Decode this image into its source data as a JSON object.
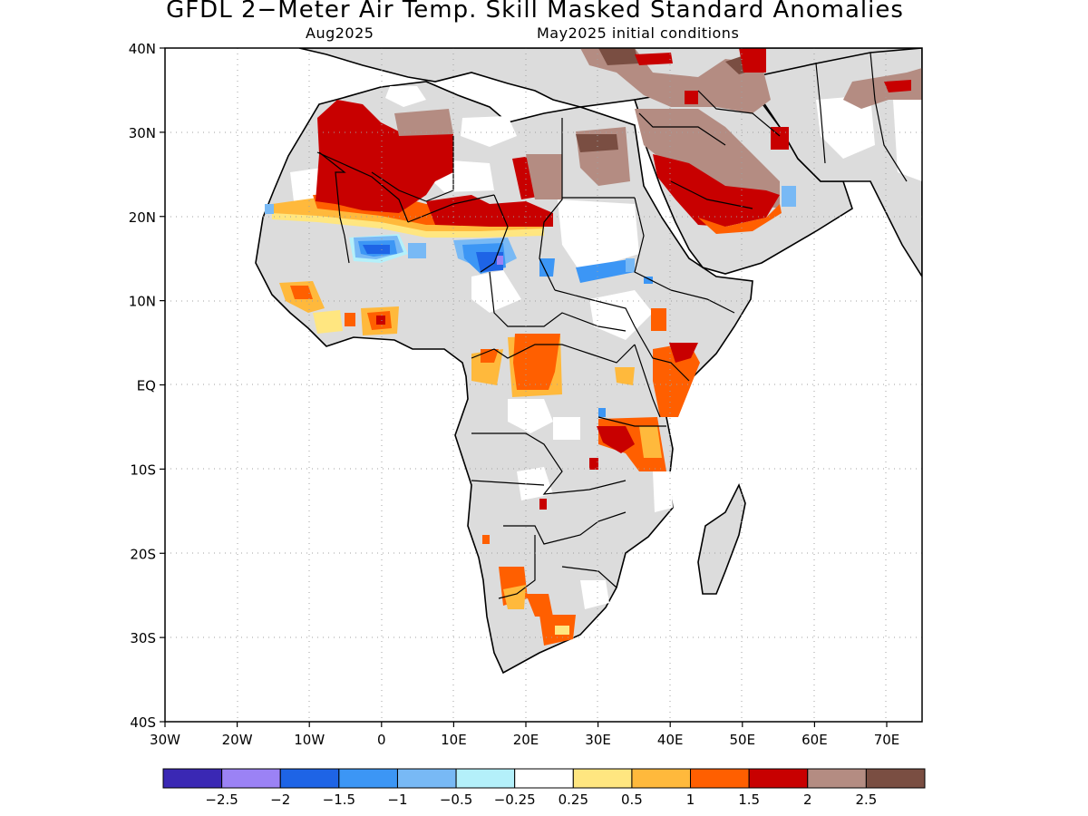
{
  "title": "GFDL 2−Meter Air Temp. Skill Masked Standard Anomalies",
  "subtitle_left": "Aug2025",
  "subtitle_right": "May2025 initial conditions",
  "lat_labels": [
    "40N",
    "30N",
    "20N",
    "10N",
    "EQ",
    "10S",
    "20S",
    "30S",
    "40S"
  ],
  "lon_labels": [
    "30W",
    "20W",
    "10W",
    "0",
    "10E",
    "20E",
    "30E",
    "40E",
    "50E",
    "60E",
    "70E"
  ],
  "colorbar": {
    "colors": [
      "#3a28b4",
      "#9b82f5",
      "#1e64e6",
      "#3c96f5",
      "#78b9f5",
      "#b4f0fa",
      "#ffffff",
      "#ffe680",
      "#ffb93c",
      "#ff5f00",
      "#c80000",
      "#b48c82",
      "#7a4e42"
    ],
    "labels": [
      "−2.5",
      "−2",
      "−1.5",
      "−1",
      "−0.5",
      "−0.25",
      "0.25",
      "0.5",
      "1",
      "1.5",
      "2",
      "2.5"
    ]
  },
  "colors": {
    "land": "#dcdcdc",
    "skill_mask": "#ffffff",
    "grid": "#a0a0a0"
  }
}
